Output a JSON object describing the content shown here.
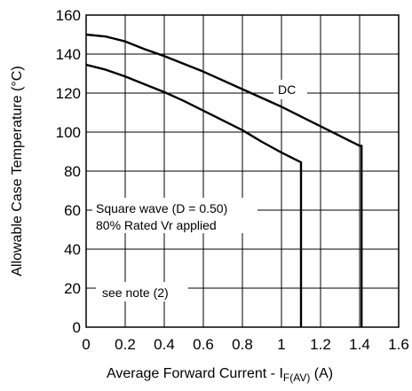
{
  "chart_data": {
    "type": "line",
    "xlabel_main": "Average Forward Current - I",
    "xlabel_sub": "F(AV)",
    "xlabel_unit": " (A)",
    "ylabel": "Allowable Case Temperature (°C)",
    "xlim": [
      0,
      1.6
    ],
    "ylim": [
      0,
      160
    ],
    "x_ticks": [
      "0",
      "0.2",
      "0.4",
      "0.6",
      "0.8",
      "1",
      "1.2",
      "1.4",
      "1.6"
    ],
    "y_ticks": [
      "0",
      "20",
      "40",
      "60",
      "80",
      "100",
      "120",
      "140",
      "160"
    ],
    "grid": true,
    "series": [
      {
        "name": "DC",
        "points": [
          [
            0,
            150
          ],
          [
            0.1,
            149
          ],
          [
            0.2,
            146.5
          ],
          [
            0.3,
            142.5
          ],
          [
            0.4,
            139
          ],
          [
            0.5,
            135
          ],
          [
            0.6,
            131
          ],
          [
            0.7,
            126.5
          ],
          [
            0.8,
            122
          ],
          [
            0.9,
            117.5
          ],
          [
            1.0,
            113
          ],
          [
            1.1,
            108
          ],
          [
            1.2,
            103
          ],
          [
            1.3,
            98
          ],
          [
            1.4,
            93
          ],
          [
            1.41,
            93
          ],
          [
            1.41,
            0
          ]
        ]
      },
      {
        "name": "Square wave (D = 0.50)",
        "points": [
          [
            0,
            134.5
          ],
          [
            0.1,
            132
          ],
          [
            0.2,
            128.5
          ],
          [
            0.3,
            124.5
          ],
          [
            0.4,
            120.5
          ],
          [
            0.5,
            116
          ],
          [
            0.6,
            111
          ],
          [
            0.7,
            106
          ],
          [
            0.8,
            101
          ],
          [
            0.9,
            95
          ],
          [
            1.0,
            89.5
          ],
          [
            1.1,
            84.5
          ],
          [
            1.1,
            0
          ]
        ]
      }
    ],
    "annotations": {
      "dc": "DC",
      "square_line1": "Square wave (D = 0.50)",
      "square_line2": "80% Rated Vr applied",
      "note": "see note (2)"
    }
  }
}
